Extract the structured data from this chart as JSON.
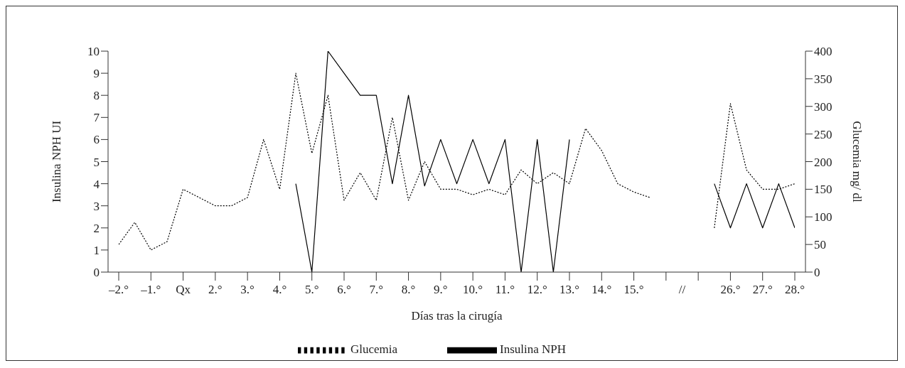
{
  "chart_data": {
    "type": "line",
    "xlabel": "Días tras la cirugía",
    "ylabel": "Insulina NPH UI",
    "y2label": "Glucemia mg/ dl",
    "categories": [
      "–2.°",
      null,
      "–1.°",
      null,
      "Qx",
      null,
      "2.°",
      null,
      "3.°",
      null,
      "4.°",
      null,
      "5.°",
      null,
      "6.°",
      null,
      "7.°",
      null,
      "8.°",
      null,
      "9.°",
      null,
      "10.°",
      null,
      "11.°",
      null,
      "12.°",
      null,
      "13.°",
      null,
      "14.°",
      null,
      "15.°",
      null,
      null,
      "//",
      null,
      null,
      "26.°",
      null,
      "27.°",
      null,
      "28.°"
    ],
    "series": [
      {
        "name": "Insulina NPH",
        "color": "#000000",
        "line_style": "solid",
        "values": [
          null,
          null,
          null,
          null,
          null,
          null,
          null,
          null,
          null,
          null,
          null,
          4,
          0,
          10,
          9,
          8,
          8,
          4,
          8,
          3.9,
          6,
          4,
          6,
          4,
          6,
          0,
          6,
          0,
          6,
          null,
          null,
          null,
          null,
          null,
          null,
          null,
          null,
          4,
          2,
          4,
          2,
          4,
          2
        ]
      },
      {
        "name": "Glucemia",
        "color": "#000000",
        "line_style": "dotted",
        "axis": "y2",
        "values": [
          50,
          90,
          40,
          55,
          150,
          135,
          120,
          120,
          135,
          240,
          150,
          360,
          215,
          320,
          130,
          180,
          130,
          280,
          130,
          200,
          150,
          150,
          140,
          150,
          140,
          185,
          160,
          180,
          160,
          260,
          220,
          160,
          145,
          135,
          null,
          null,
          null,
          80,
          305,
          185,
          150,
          150,
          160
        ]
      }
    ],
    "ylim": [
      0,
      10
    ],
    "yticks": [
      0,
      1,
      2,
      3,
      4,
      5,
      6,
      7,
      8,
      9,
      10
    ],
    "y2lim": [
      0,
      400
    ],
    "y2ticks": [
      0,
      50,
      100,
      150,
      200,
      250,
      300,
      350,
      400
    ],
    "grid": false,
    "legend": "bottom",
    "marker": "none"
  }
}
